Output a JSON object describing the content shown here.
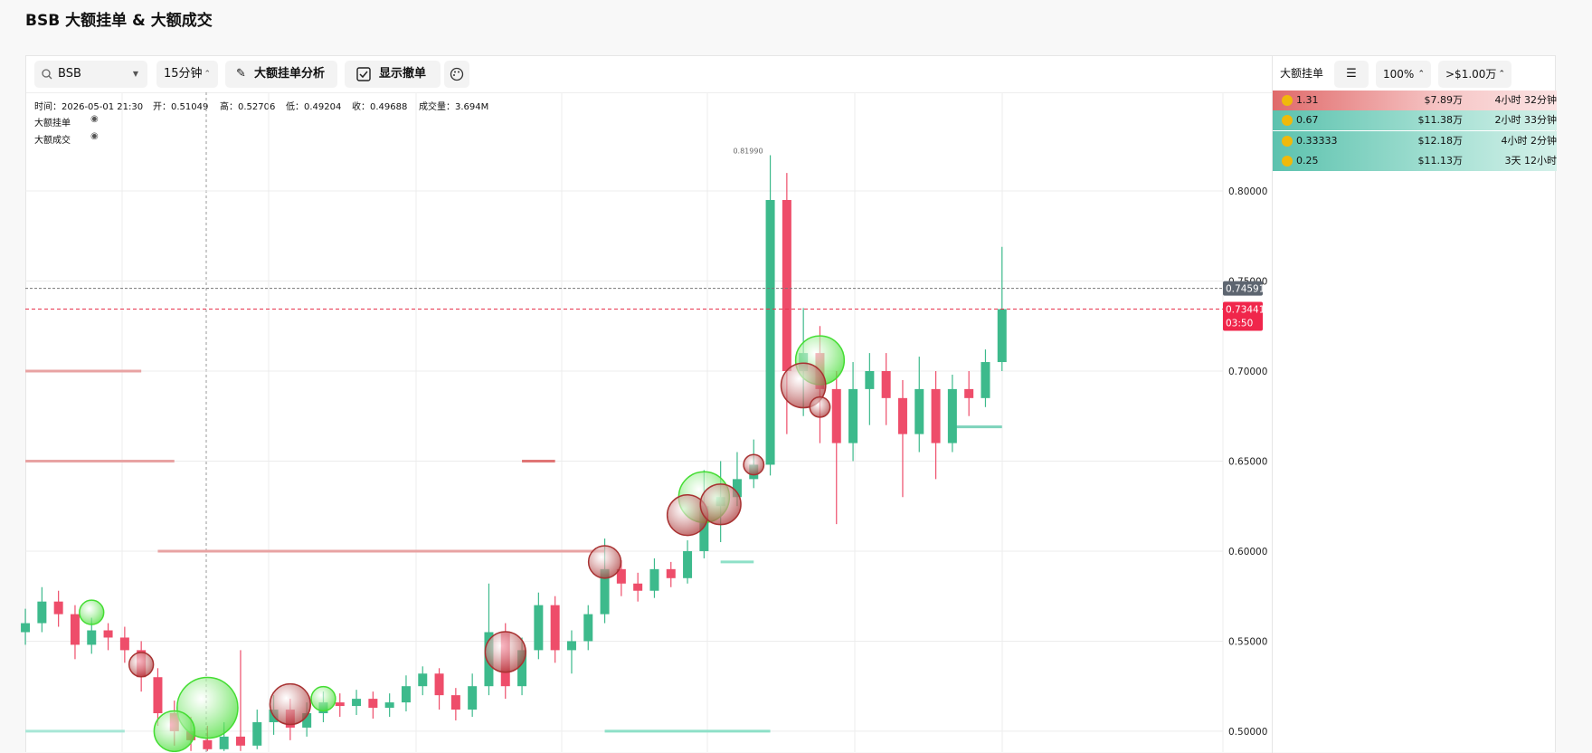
{
  "header": {
    "title": "BSB 大额挂单 & 大额成交"
  },
  "toolbar": {
    "search": "BSB",
    "interval": "15分钟",
    "analysis": "大额挂单分析",
    "show_cancel": "显示撤单"
  },
  "info": {
    "time": "时间：2026-05-01 21:30",
    "open": "开：0.51049",
    "high": "高：0.52706",
    "low": "低：0.49204",
    "close": "收：0.49688",
    "volume": "成交量：3.694M"
  },
  "legend": [
    "大额挂单",
    "大额成交"
  ],
  "chart_data": {
    "type": "candlestick",
    "open": [
      0.555,
      0.56,
      0.572,
      0.565,
      0.548,
      0.556,
      0.552,
      0.545,
      0.53,
      0.51,
      0.5,
      0.495,
      0.49,
      0.497,
      0.492,
      0.505,
      0.512,
      0.502,
      0.51,
      0.516,
      0.514,
      0.518,
      0.513,
      0.516,
      0.525,
      0.532,
      0.52,
      0.512,
      0.525,
      0.555,
      0.525,
      0.545,
      0.57,
      0.545,
      0.55,
      0.565,
      0.59,
      0.582,
      0.578,
      0.59,
      0.585,
      0.6,
      0.625,
      0.63,
      0.64,
      0.648,
      0.795,
      0.7,
      0.71,
      0.69,
      0.66,
      0.69,
      0.7,
      0.685,
      0.665,
      0.69,
      0.66,
      0.69,
      0.685,
      0.705
    ],
    "high": [
      0.568,
      0.58,
      0.578,
      0.57,
      0.563,
      0.56,
      0.558,
      0.55,
      0.535,
      0.517,
      0.508,
      0.503,
      0.505,
      0.545,
      0.512,
      0.52,
      0.518,
      0.516,
      0.522,
      0.521,
      0.523,
      0.522,
      0.521,
      0.531,
      0.536,
      0.535,
      0.524,
      0.532,
      0.582,
      0.56,
      0.552,
      0.577,
      0.575,
      0.556,
      0.57,
      0.607,
      0.595,
      0.588,
      0.596,
      0.594,
      0.606,
      0.645,
      0.65,
      0.655,
      0.662,
      0.8199,
      0.81,
      0.735,
      0.725,
      0.7,
      0.705,
      0.71,
      0.71,
      0.695,
      0.708,
      0.7,
      0.698,
      0.7,
      0.712,
      0.769
    ],
    "low": [
      0.548,
      0.555,
      0.558,
      0.54,
      0.543,
      0.545,
      0.538,
      0.522,
      0.503,
      0.492,
      0.489,
      0.489,
      0.489,
      0.489,
      0.49,
      0.498,
      0.495,
      0.497,
      0.505,
      0.508,
      0.509,
      0.507,
      0.508,
      0.511,
      0.52,
      0.512,
      0.506,
      0.508,
      0.52,
      0.518,
      0.52,
      0.54,
      0.538,
      0.532,
      0.545,
      0.56,
      0.575,
      0.572,
      0.574,
      0.58,
      0.582,
      0.596,
      0.605,
      0.625,
      0.635,
      0.642,
      0.665,
      0.675,
      0.66,
      0.615,
      0.65,
      0.67,
      0.67,
      0.63,
      0.655,
      0.64,
      0.655,
      0.675,
      0.68,
      0.7
    ],
    "close": [
      0.56,
      0.572,
      0.565,
      0.548,
      0.556,
      0.552,
      0.545,
      0.53,
      0.51,
      0.5,
      0.495,
      0.49,
      0.497,
      0.492,
      0.505,
      0.512,
      0.502,
      0.51,
      0.516,
      0.514,
      0.518,
      0.513,
      0.516,
      0.525,
      0.532,
      0.52,
      0.512,
      0.525,
      0.555,
      0.525,
      0.545,
      0.57,
      0.545,
      0.55,
      0.565,
      0.59,
      0.582,
      0.578,
      0.59,
      0.585,
      0.6,
      0.625,
      0.63,
      0.64,
      0.648,
      0.795,
      0.7,
      0.71,
      0.69,
      0.66,
      0.69,
      0.7,
      0.685,
      0.665,
      0.69,
      0.66,
      0.69,
      0.685,
      0.705,
      0.7344
    ],
    "up_color": "#3dba8c",
    "down_color": "#ee4d6a",
    "ylim": [
      0.4884,
      0.8548
    ],
    "yticks": [
      {
        "value": 0.5,
        "label": "0.50000"
      },
      {
        "value": 0.55,
        "label": "0.55000"
      },
      {
        "value": 0.6,
        "label": "0.60000"
      },
      {
        "value": 0.65,
        "label": "0.65000"
      },
      {
        "value": 0.7,
        "label": "0.70000"
      },
      {
        "value": 0.75,
        "label": "0.75000"
      },
      {
        "value": 0.8,
        "label": "0.80000"
      }
    ],
    "grid": true,
    "high_label": "0.81990",
    "last_price": {
      "value": 0.74591,
      "label": "0.74591"
    },
    "current_price": {
      "value": 0.73441,
      "label": "0.73441"
    },
    "countdown": "03:50",
    "orders": {
      "price": [
        0.7,
        0.65,
        0.65,
        0.6,
        0.594,
        0.669,
        0.5,
        0.5
      ],
      "start": [
        0,
        0,
        30,
        8,
        42,
        56,
        0,
        35
      ],
      "end": [
        7,
        9,
        32,
        35,
        44,
        59,
        6,
        45
      ],
      "color": [
        "#e8a3a3",
        "#e8a3a3",
        "#e07575",
        "#e8a3a3",
        "#8ee0c8",
        "#7dd3bb",
        "#a8e6d6",
        "#8ee0c8"
      ]
    },
    "trades": {
      "index": [
        4,
        7,
        11,
        9,
        16,
        18,
        29,
        35,
        41,
        40,
        42,
        44,
        48,
        47,
        48
      ],
      "price": [
        0.566,
        0.537,
        0.513,
        0.5,
        0.515,
        0.518,
        0.544,
        0.594,
        0.63,
        0.62,
        0.626,
        0.648,
        0.706,
        0.692,
        0.68
      ],
      "size": [
        12,
        12,
        30,
        20,
        20,
        12,
        20,
        16,
        25,
        20,
        20,
        10,
        24,
        22,
        10
      ],
      "color": [
        "#44dd33",
        "#a83232",
        "#44dd33",
        "#44dd33",
        "#a83232",
        "#44dd33",
        "#a83232",
        "#a83232",
        "#44dd33",
        "#a83232",
        "#a83232",
        "#a83232",
        "#44dd33",
        "#a83232",
        "#a83232"
      ]
    }
  },
  "panel": {
    "title": "大额挂单",
    "percent": "100%",
    "threshold": ">$1.00万",
    "rows": [
      [
        "1.31",
        "$7.89万",
        "4小时 32分钟"
      ],
      [
        "0.67",
        "$11.38万",
        "2小时 33分钟"
      ],
      [
        "0.33333",
        "$12.18万",
        "4小时 2分钟"
      ],
      [
        "0.25",
        "$11.13万",
        "3天 12小时"
      ]
    ]
  }
}
